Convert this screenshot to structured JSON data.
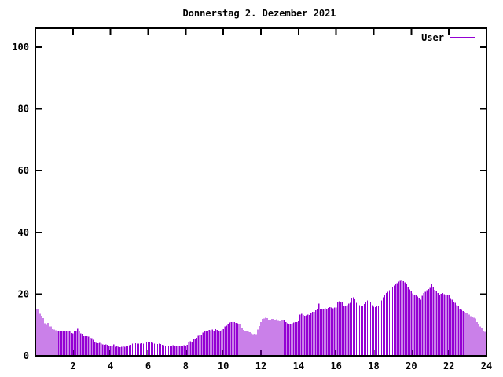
{
  "window": {
    "background": "#ffffff"
  },
  "colors": {
    "series": "#9400D3",
    "axis": "#000000",
    "text": "#000000",
    "background": "#ffffff"
  },
  "chart_data": {
    "type": "bar",
    "style": "impulses",
    "title": "Donnerstag 2. Dezember 2021",
    "xlabel": "",
    "ylabel": "",
    "legend": [
      "User"
    ],
    "legend_position": "top-right",
    "grid": false,
    "xlim": [
      0,
      24
    ],
    "ylim": [
      0,
      106
    ],
    "xticks": [
      2,
      4,
      6,
      8,
      10,
      12,
      14,
      16,
      18,
      20,
      22,
      24
    ],
    "yticks": [
      0,
      20,
      40,
      60,
      80,
      100
    ],
    "series": [
      {
        "name": "User",
        "color": "#9400D3",
        "interval_minutes": 5,
        "start_hour": 0.0833,
        "values": [
          15.2,
          15.0,
          13.6,
          13.0,
          12.2,
          10.5,
          10.0,
          10.7,
          9.6,
          9.6,
          8.7,
          8.5,
          8.3,
          8.1,
          8.2,
          8.0,
          8.2,
          8.1,
          7.9,
          8.2,
          8.0,
          8.1,
          7.4,
          7.2,
          7.9,
          8.2,
          8.8,
          8.2,
          7.2,
          7.1,
          6.4,
          6.3,
          6.4,
          6.2,
          5.8,
          5.7,
          5.2,
          4.3,
          4.2,
          4.1,
          4.2,
          4.0,
          3.7,
          3.6,
          3.7,
          3.5,
          3.1,
          3.0,
          3.0,
          3.7,
          2.9,
          3.0,
          2.9,
          2.8,
          2.9,
          3.0,
          2.9,
          3.1,
          3.2,
          3.4,
          3.6,
          3.9,
          4.0,
          4.1,
          4.0,
          3.9,
          4.0,
          4.1,
          4.0,
          4.2,
          4.3,
          4.3,
          4.4,
          4.3,
          4.2,
          4.0,
          3.9,
          3.8,
          3.9,
          3.8,
          3.5,
          3.4,
          3.3,
          3.3,
          3.3,
          3.2,
          3.3,
          3.4,
          3.3,
          3.2,
          3.3,
          3.3,
          3.2,
          3.3,
          3.4,
          3.3,
          3.6,
          4.5,
          4.7,
          4.6,
          5.3,
          5.6,
          5.8,
          6.5,
          6.7,
          6.6,
          7.5,
          7.9,
          8.0,
          8.2,
          8.4,
          8.3,
          8.5,
          8.2,
          8.6,
          8.4,
          8.1,
          8.0,
          8.3,
          8.6,
          9.5,
          9.8,
          10.2,
          10.8,
          11.0,
          10.9,
          11.0,
          10.7,
          10.6,
          10.4,
          10.3,
          8.9,
          8.4,
          8.1,
          8.0,
          7.8,
          7.6,
          7.2,
          7.0,
          7.1,
          7.0,
          8.5,
          9.7,
          11.0,
          11.9,
          12.1,
          12.4,
          12.2,
          11.6,
          11.4,
          11.9,
          12.0,
          11.6,
          11.8,
          11.3,
          11.2,
          11.4,
          11.7,
          11.5,
          11.0,
          10.6,
          10.4,
          10.2,
          10.5,
          10.8,
          10.9,
          11.0,
          11.2,
          13.3,
          13.6,
          13.2,
          13.0,
          13.1,
          13.4,
          13.2,
          14.0,
          14.3,
          14.2,
          14.7,
          15.0,
          16.9,
          15.2,
          15.1,
          15.3,
          15.4,
          15.2,
          15.5,
          15.8,
          15.6,
          15.4,
          15.6,
          15.6,
          17.4,
          17.7,
          17.5,
          17.3,
          16.2,
          16.0,
          16.4,
          16.9,
          17.2,
          18.6,
          19.0,
          18.3,
          17.2,
          17.0,
          16.4,
          16.0,
          16.2,
          16.8,
          17.4,
          17.9,
          18.1,
          17.4,
          16.4,
          15.9,
          15.8,
          16.0,
          16.3,
          17.7,
          17.9,
          19.0,
          19.8,
          20.3,
          20.7,
          21.2,
          21.9,
          22.3,
          22.8,
          23.2,
          23.6,
          24.1,
          24.3,
          24.5,
          24.2,
          23.8,
          23.2,
          22.4,
          21.5,
          21.1,
          20.2,
          19.8,
          19.6,
          19.2,
          18.6,
          18.2,
          19.5,
          20.3,
          20.8,
          21.3,
          21.6,
          22.0,
          23.2,
          22.4,
          21.4,
          21.1,
          20.3,
          19.8,
          20.1,
          20.3,
          20.0,
          19.8,
          19.9,
          19.7,
          18.4,
          18.2,
          17.5,
          17.2,
          16.4,
          16.0,
          15.2,
          14.9,
          14.5,
          14.3,
          14.0,
          13.8,
          13.3,
          12.8,
          12.6,
          12.3,
          12.1,
          11.0,
          10.4,
          9.5,
          9.0,
          8.2,
          7.8,
          7.4
        ]
      }
    ]
  }
}
